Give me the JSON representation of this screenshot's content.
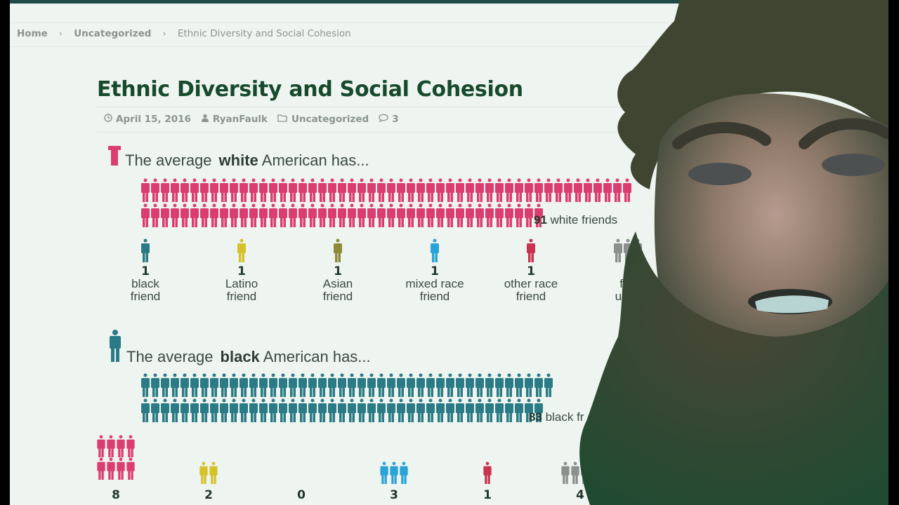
{
  "colors": {
    "white_group": "#dc3d70",
    "black_group": "#2b7b86",
    "latino": "#d5c22b",
    "asian": "#8f8a3a",
    "mixed": "#2aa3d6",
    "other": "#c8334f",
    "unknown": "#8a908c",
    "title": "#174a2c",
    "background": "#eef4ef"
  },
  "breadcrumb": {
    "home": "Home",
    "sep1": "›",
    "category": "Uncategorized",
    "sep2": "›",
    "current": "Ethnic Diversity and Social Cohesion"
  },
  "post": {
    "title": "Ethnic Diversity and Social Cohesion",
    "meta": {
      "date_icon": "clock-icon",
      "date": "April 15, 2016",
      "author_icon": "user-icon",
      "author": "RyanFaulk",
      "category_icon": "folder-icon",
      "category": "Uncategorized",
      "comments_icon": "comment-icon",
      "comments": "3"
    }
  },
  "chart_data": [
    {
      "type": "pictogram",
      "title": "The average white American has...",
      "title_pre": "The average",
      "title_bold": "white",
      "title_post": "American has...",
      "main_count": 91,
      "main_label_num": "91",
      "main_label_text": "white friends",
      "rows": [
        50,
        41
      ],
      "categories": [
        {
          "num": "1",
          "line1": "black",
          "line2": "friend",
          "value": 1,
          "color_key": "black_group"
        },
        {
          "num": "1",
          "line1": "Latino",
          "line2": "friend",
          "value": 1,
          "color_key": "latino"
        },
        {
          "num": "1",
          "line1": "Asian",
          "line2": "friend",
          "value": 1,
          "color_key": "asian"
        },
        {
          "num": "1",
          "line1": "mixed race",
          "line2": "friend",
          "value": 1,
          "color_key": "mixed"
        },
        {
          "num": "1",
          "line1": "other race",
          "line2": "friend",
          "value": 1,
          "color_key": "other"
        },
        {
          "num": "",
          "line1": "frie",
          "line2": "unkn",
          "value": 3,
          "color_key": "unknown"
        }
      ]
    },
    {
      "type": "pictogram",
      "title": "The average black American has...",
      "title_pre": "The average",
      "title_bold": "black",
      "title_post": "American has...",
      "main_count": 83,
      "main_label_num": "83",
      "main_label_text": "black fr",
      "rows": [
        42,
        41
      ],
      "categories": [
        {
          "num": "8",
          "value": 8,
          "color_key": "white_group"
        },
        {
          "num": "2",
          "value": 2,
          "color_key": "latino"
        },
        {
          "num": "0",
          "value": 0,
          "color_key": "asian"
        },
        {
          "num": "3",
          "value": 3,
          "color_key": "mixed"
        },
        {
          "num": "1",
          "value": 1,
          "color_key": "other"
        },
        {
          "num": "4",
          "value": 4,
          "color_key": "unknown"
        }
      ]
    }
  ],
  "overlay": {
    "webcam": "presenter-webcam"
  }
}
